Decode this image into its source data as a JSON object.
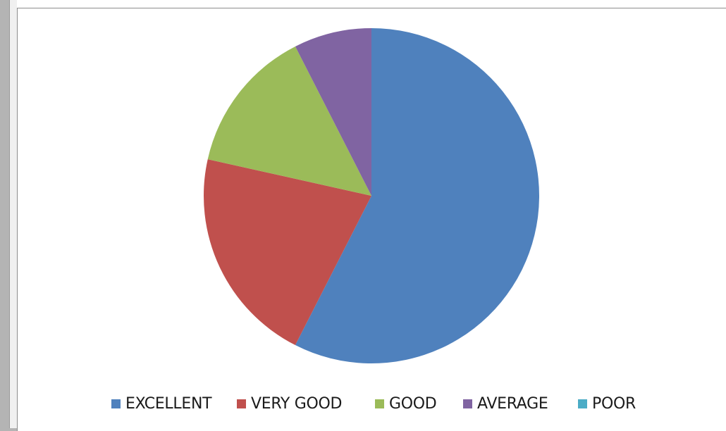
{
  "chart_data": {
    "type": "pie",
    "title": "",
    "slices": [
      {
        "label": "EXCELLENT",
        "value": 57.5,
        "color": "#4f81bd"
      },
      {
        "label": "VERY GOOD",
        "value": 21.0,
        "color": "#c0504d"
      },
      {
        "label": "GOOD",
        "value": 14.0,
        "color": "#9bbb59"
      },
      {
        "label": "AVERAGE",
        "value": 7.5,
        "color": "#8064a2"
      },
      {
        "label": "POOR",
        "value": 0,
        "color": "#4bacc6"
      }
    ],
    "legend_position": "bottom"
  },
  "legend": {
    "items": [
      {
        "label": "EXCELLENT",
        "color": "#4f81bd"
      },
      {
        "label": "VERY GOOD",
        "color": "#c0504d"
      },
      {
        "label": "GOOD",
        "color": "#9bbb59"
      },
      {
        "label": "AVERAGE",
        "color": "#8064a2"
      },
      {
        "label": "POOR",
        "color": "#4bacc6"
      }
    ]
  }
}
